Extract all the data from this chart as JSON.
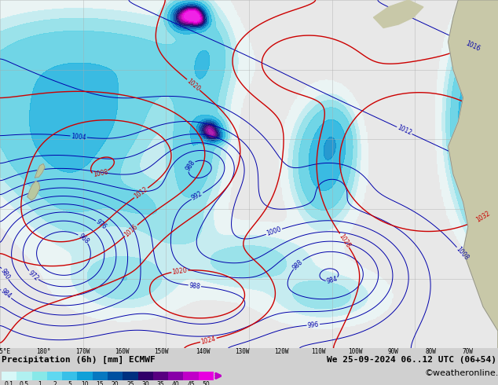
{
  "title_left": "Precipitation (6h) [mm] ECMWF",
  "title_right": "We 25-09-2024 06..12 UTC (06+54)",
  "credit": "©weatheronline.co.uk",
  "colorbar_levels": [
    0.1,
    0.5,
    1,
    2,
    5,
    10,
    15,
    20,
    25,
    30,
    35,
    40,
    45,
    50
  ],
  "colorbar_colors": [
    "#d8f8f8",
    "#b0f0f0",
    "#88e8e8",
    "#60d8f0",
    "#38c0e8",
    "#10a0d8",
    "#0878c0",
    "#0050a0",
    "#003080",
    "#300068",
    "#580080",
    "#8800a8",
    "#c000c8",
    "#e800e0"
  ],
  "bg_land": "#c8c8b8",
  "bg_ocean": "#e8e8e8",
  "bg_land2": "#b8c8a0",
  "contour_blue": "#0000aa",
  "contour_red": "#cc0000",
  "grid_color": "#aaaaaa",
  "bottom_bg": "#d0d0d0",
  "title_fontsize": 8,
  "credit_fontsize": 8,
  "label_fontsize": 6
}
